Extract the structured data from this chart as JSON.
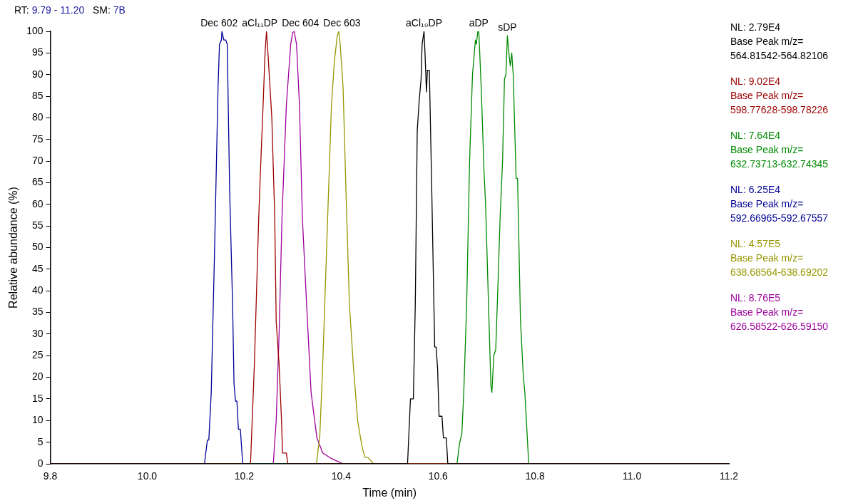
{
  "chart_data": {
    "type": "line",
    "title": "RT: 9.79 - 11.20",
    "subtitle": "SM: 7B",
    "xlabel": "Time (min)",
    "ylabel": "Relative abundance (%)",
    "xlim": [
      9.8,
      11.2
    ],
    "xticks": [
      9.8,
      {
        "value": 10.0,
        "label": "10.0"
      },
      10.2,
      10.4,
      10.6,
      10.8,
      {
        "value": 11.0,
        "label": "11.0"
      },
      11.2
    ],
    "ylim": [
      0,
      100
    ],
    "yticks": [
      0,
      5,
      10,
      15,
      20,
      25,
      30,
      35,
      40,
      45,
      50,
      55,
      60,
      65,
      70,
      75,
      80,
      85,
      90,
      95,
      100
    ],
    "grid": false,
    "legend": "right",
    "marker": "none",
    "line_style": "solid",
    "series": [
      {
        "name": "NL: 2.79E4\nBase Peak m/z=\n564.81542-564.82106",
        "color": "#000000",
        "x": [
          9.8,
          10.537,
          10.543,
          10.549,
          10.553,
          10.557,
          10.561,
          10.565,
          10.567,
          10.571,
          10.573,
          10.576,
          10.578,
          10.582,
          10.587,
          10.593,
          10.596,
          10.599,
          10.602,
          10.608,
          10.611,
          10.617,
          10.62,
          11.2
        ],
        "values": [
          0,
          0,
          15,
          15,
          37,
          77,
          84,
          89,
          97,
          100,
          95,
          86,
          91,
          91,
          63,
          27,
          27,
          22,
          11,
          11,
          6,
          6,
          0,
          0
        ]
      },
      {
        "name": "NL: 9.02E4\nBase Peak m/z=\n598.77628-598.78226",
        "color": "#9c0000",
        "x": [
          9.8,
          10.213,
          10.221,
          10.23,
          10.234,
          10.239,
          10.243,
          10.246,
          10.249,
          10.257,
          10.263,
          10.266,
          10.272,
          10.277,
          10.279,
          10.287,
          10.29,
          11.2
        ],
        "values": [
          0,
          0,
          23,
          57,
          69,
          83,
          95,
          100,
          95,
          80,
          57,
          33,
          23,
          10,
          2.5,
          2.5,
          0,
          0
        ]
      },
      {
        "name": "NL: 7.64E4\nBase Peak m/z=\n632.73713-632.74345",
        "color": "#008a00",
        "x": [
          9.8,
          10.639,
          10.644,
          10.649,
          10.653,
          10.659,
          10.665,
          10.671,
          10.677,
          10.679,
          10.682,
          10.684,
          10.689,
          10.695,
          10.698,
          10.704,
          10.709,
          10.711,
          10.715,
          10.719,
          10.724,
          10.728,
          10.733,
          10.737,
          10.74,
          10.743,
          10.746,
          10.749,
          10.752,
          10.755,
          10.761,
          10.764,
          10.77,
          10.776,
          10.779,
          10.787,
          11.2
        ],
        "values": [
          0,
          0,
          4.5,
          7,
          16.5,
          37,
          70,
          90,
          98,
          97,
          100,
          100,
          87,
          67,
          60,
          37,
          18,
          16.5,
          25,
          26.5,
          43,
          57,
          70,
          89,
          90,
          99,
          95,
          92,
          95,
          90,
          66,
          66,
          33,
          20,
          16.5,
          0,
          0
        ]
      },
      {
        "name": "NL: 6.25E4\nBase Peak m/z=\n592.66965-592.67557",
        "color": "#000096",
        "x": [
          9.8,
          10.118,
          10.124,
          10.127,
          10.132,
          10.139,
          10.146,
          10.149,
          10.153,
          10.154,
          10.158,
          10.162,
          10.165,
          10.17,
          10.176,
          10.179,
          10.182,
          10.185,
          10.188,
          10.192,
          10.197,
          11.2
        ],
        "values": [
          0,
          0,
          5.5,
          5.5,
          16.5,
          50,
          87,
          97,
          98,
          100,
          98,
          98,
          97,
          63,
          37,
          18.5,
          14.5,
          14.5,
          8,
          8,
          0,
          0
        ]
      },
      {
        "name": "NL: 4.57E5\nBase Peak m/z=\n638.68564-638.69202",
        "color": "#969600",
        "x": [
          9.8,
          10.349,
          10.356,
          10.362,
          10.368,
          10.374,
          10.38,
          10.386,
          10.392,
          10.395,
          10.398,
          10.404,
          10.41,
          10.417,
          10.425,
          10.434,
          10.443,
          10.449,
          10.455,
          10.467,
          11.2
        ],
        "values": [
          0,
          0,
          6.5,
          23,
          43,
          63,
          83,
          93,
          99,
          100,
          97,
          87,
          63,
          37,
          23,
          10,
          4,
          1.5,
          1.5,
          0,
          0
        ]
      },
      {
        "name": "NL: 8.76E5\nBase Peak m/z=\n626.58522-626.59150",
        "color": "#9c009c",
        "x": [
          9.8,
          10.26,
          10.266,
          10.272,
          10.278,
          10.287,
          10.296,
          10.3,
          10.303,
          10.308,
          10.314,
          10.32,
          10.326,
          10.338,
          10.35,
          10.362,
          10.38,
          10.404,
          11.2
        ],
        "values": [
          0,
          0,
          10,
          30,
          57,
          83,
          97,
          99.7,
          100,
          97,
          83,
          57,
          43,
          16.5,
          6,
          2.5,
          1.2,
          0,
          0
        ]
      }
    ],
    "annotations": [
      {
        "text": "Dec 602",
        "x": 10.154,
        "y": 100
      },
      {
        "text": "aCl₁₁DP",
        "x": 10.246,
        "y": 100
      },
      {
        "text": "Dec 604",
        "x": 10.303,
        "y": 100
      },
      {
        "text": "Dec 603",
        "x": 10.395,
        "y": 100
      },
      {
        "text": "aCl₁₀DP",
        "x": 10.571,
        "y": 100
      },
      {
        "text": "aDP",
        "x": 10.684,
        "y": 100
      },
      {
        "text": "sDP",
        "x": 10.743,
        "y": 99
      }
    ]
  }
}
